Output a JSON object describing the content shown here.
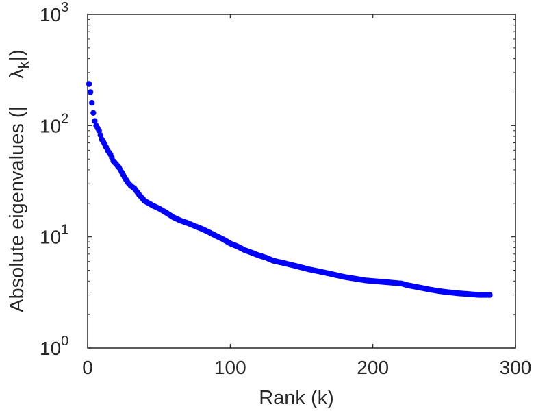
{
  "chart_data": {
    "type": "scatter",
    "title": "",
    "xlabel": "Rank (k)",
    "ylabel": "Absolute eigenvalues (|     λk|)",
    "ylabel_parts": {
      "prefix": "Absolute eigenvalues (|",
      "lambda": "λ",
      "subscript": "k",
      "suffix": "|)"
    },
    "xlim": [
      0,
      300
    ],
    "ylim": [
      1,
      1000
    ],
    "yscale": "log",
    "grid": false,
    "box": true,
    "xticks": [
      0,
      100,
      200,
      300
    ],
    "xtick_labels": [
      "0",
      "100",
      "200",
      "300"
    ],
    "yticks": [
      1,
      10,
      100,
      1000
    ],
    "ytick_labels": [
      {
        "base": "10",
        "exp": "0"
      },
      {
        "base": "10",
        "exp": "1"
      },
      {
        "base": "10",
        "exp": "2"
      },
      {
        "base": "10",
        "exp": "3"
      }
    ],
    "marker_color": "#0000ff",
    "axis_color": "#262626",
    "series": [
      {
        "x": [
          1,
          2,
          3,
          4,
          5,
          6,
          8,
          10,
          12,
          14,
          16,
          18,
          20,
          22,
          24,
          26,
          28,
          30,
          33,
          36,
          40,
          43,
          46,
          50,
          55,
          60,
          65,
          70,
          75,
          80,
          85,
          90,
          95,
          100,
          105,
          110,
          115,
          120,
          125,
          130,
          135,
          140,
          145,
          150,
          155,
          160,
          165,
          170,
          175,
          180,
          185,
          190,
          195,
          200,
          205,
          210,
          215,
          220,
          225,
          230,
          235,
          240,
          245,
          250,
          255,
          260,
          265,
          270,
          275,
          280,
          282
        ],
        "y": [
          237,
          200,
          160,
          130,
          110,
          100,
          90,
          75,
          68,
          60,
          55,
          48,
          45,
          42,
          38,
          34,
          31,
          29,
          27,
          24,
          21,
          20,
          19,
          18,
          16.5,
          15,
          14,
          13.3,
          12.5,
          11.8,
          11,
          10.2,
          9.5,
          8.7,
          8.2,
          7.6,
          7.2,
          6.8,
          6.5,
          6.1,
          5.9,
          5.7,
          5.5,
          5.3,
          5.1,
          4.95,
          4.8,
          4.65,
          4.5,
          4.35,
          4.25,
          4.15,
          4.05,
          4.0,
          3.95,
          3.9,
          3.85,
          3.8,
          3.65,
          3.55,
          3.45,
          3.35,
          3.27,
          3.2,
          3.15,
          3.1,
          3.07,
          3.03,
          3.0,
          3.0,
          3.0
        ]
      }
    ]
  }
}
